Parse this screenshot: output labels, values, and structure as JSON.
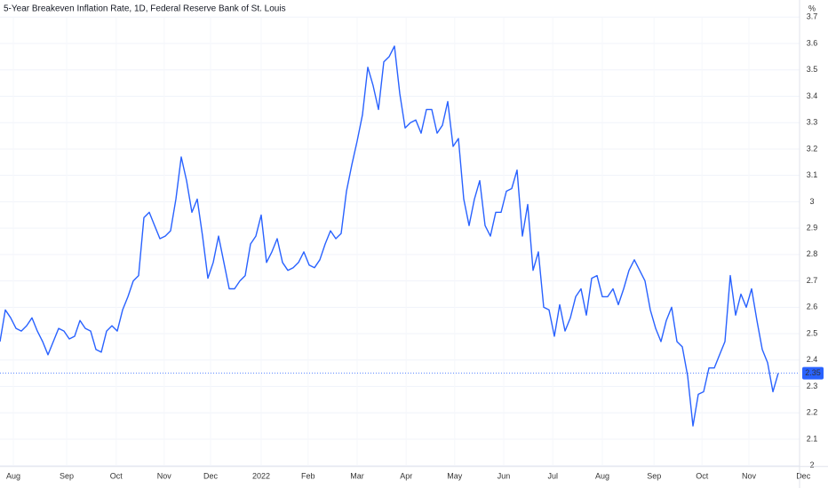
{
  "chart_data": {
    "type": "line",
    "title": "5-Year Breakeven Inflation Rate, 1D, Federal Reserve Bank of St. Louis",
    "y_unit": "%",
    "color": "#2962ff",
    "grid": true,
    "values": [
      2.47,
      2.59,
      2.56,
      2.52,
      2.51,
      2.53,
      2.56,
      2.51,
      2.47,
      2.42,
      2.47,
      2.52,
      2.51,
      2.48,
      2.49,
      2.55,
      2.52,
      2.51,
      2.44,
      2.43,
      2.51,
      2.53,
      2.51,
      2.59,
      2.64,
      2.7,
      2.72,
      2.94,
      2.96,
      2.91,
      2.86,
      2.87,
      2.89,
      3.01,
      3.17,
      3.08,
      2.96,
      3.01,
      2.87,
      2.71,
      2.77,
      2.87,
      2.77,
      2.67,
      2.67,
      2.7,
      2.72,
      2.84,
      2.87,
      2.95,
      2.77,
      2.81,
      2.86,
      2.77,
      2.74,
      2.75,
      2.77,
      2.81,
      2.76,
      2.75,
      2.78,
      2.84,
      2.89,
      2.86,
      2.88,
      3.04,
      3.14,
      3.23,
      3.33,
      3.51,
      3.44,
      3.35,
      3.53,
      3.55,
      3.59,
      3.41,
      3.28,
      3.3,
      3.31,
      3.26,
      3.35,
      3.35,
      3.26,
      3.29,
      3.38,
      3.21,
      3.24,
      3.01,
      2.91,
      3.01,
      3.08,
      2.91,
      2.87,
      2.96,
      2.96,
      3.04,
      3.05,
      3.12,
      2.87,
      2.99,
      2.74,
      2.81,
      2.6,
      2.59,
      2.49,
      2.61,
      2.51,
      2.56,
      2.64,
      2.67,
      2.57,
      2.71,
      2.72,
      2.64,
      2.64,
      2.67,
      2.61,
      2.67,
      2.74,
      2.78,
      2.74,
      2.7,
      2.59,
      2.52,
      2.47,
      2.55,
      2.6,
      2.47,
      2.45,
      2.34,
      2.15,
      2.27,
      2.28,
      2.37,
      2.37,
      2.42,
      2.47,
      2.72,
      2.57,
      2.65,
      2.6,
      2.67,
      2.55,
      2.44,
      2.39,
      2.28,
      2.35
    ],
    "xlim": [
      0,
      150
    ],
    "xticks": [
      {
        "value": 2.5,
        "label": "Aug"
      },
      {
        "value": 12.5,
        "label": "Sep"
      },
      {
        "value": 21.8,
        "label": "Oct"
      },
      {
        "value": 30.8,
        "label": "Nov"
      },
      {
        "value": 39.5,
        "label": "Dec"
      },
      {
        "value": 49,
        "label": "2022"
      },
      {
        "value": 57.8,
        "label": "Feb"
      },
      {
        "value": 67,
        "label": "Mar"
      },
      {
        "value": 76.2,
        "label": "Apr"
      },
      {
        "value": 85.3,
        "label": "May"
      },
      {
        "value": 94.5,
        "label": "Jun"
      },
      {
        "value": 103.7,
        "label": "Jul"
      },
      {
        "value": 113,
        "label": "Aug"
      },
      {
        "value": 122.7,
        "label": "Sep"
      },
      {
        "value": 131.7,
        "label": "Oct"
      },
      {
        "value": 140.5,
        "label": "Nov"
      },
      {
        "value": 150.7,
        "label": "Dec"
      }
    ],
    "ylim": [
      2,
      3.7
    ],
    "yticks": [
      2,
      2.1,
      2.2,
      2.3,
      2.4,
      2.5,
      2.6,
      2.7,
      2.8,
      2.9,
      3,
      3.1,
      3.2,
      3.3,
      3.4,
      3.5,
      3.6,
      3.7
    ]
  }
}
